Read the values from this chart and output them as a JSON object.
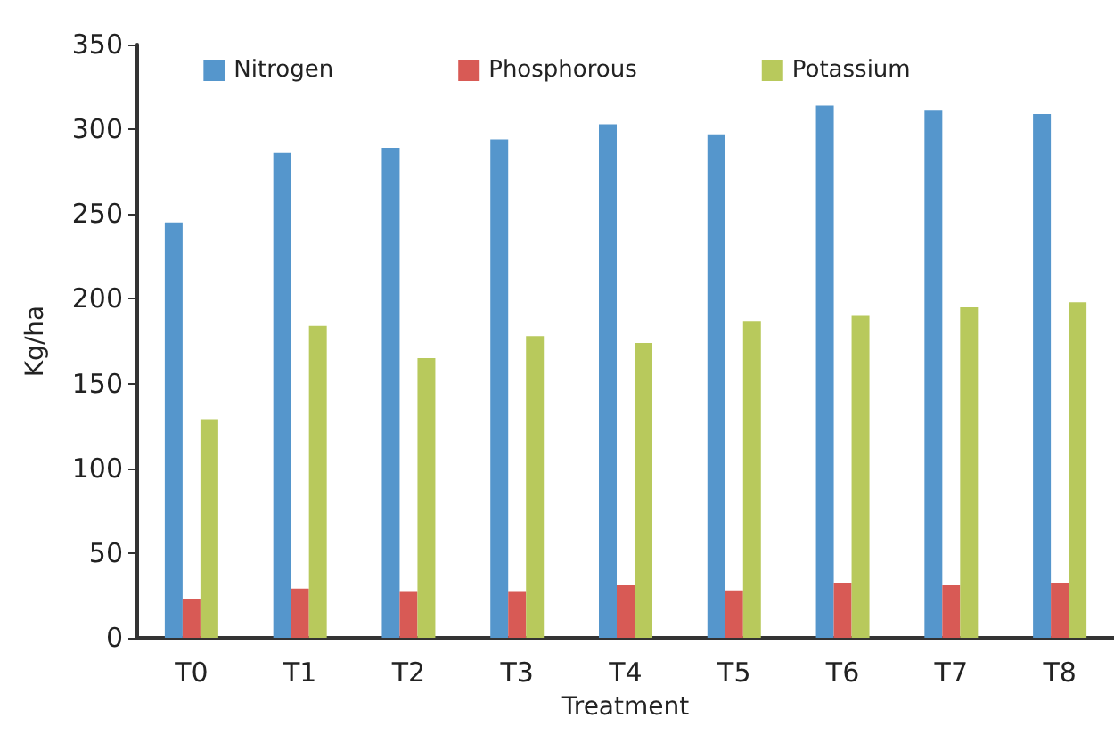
{
  "chart_data": {
    "type": "bar",
    "xlabel": "Treatment",
    "ylabel": "Kg/ha",
    "categories": [
      "T0",
      "T1",
      "T2",
      "T3",
      "T4",
      "T5",
      "T6",
      "T7",
      "T8"
    ],
    "series": [
      {
        "name": "Nitrogen",
        "color": "#5596cc",
        "values": [
          245,
          286,
          289,
          294,
          303,
          297,
          314,
          311,
          309
        ]
      },
      {
        "name": "Phosphorous",
        "color": "#d85a55",
        "values": [
          23,
          29,
          27,
          27,
          31,
          28,
          32,
          31,
          32
        ]
      },
      {
        "name": "Potassium",
        "color": "#b8c95c",
        "values": [
          129,
          184,
          165,
          178,
          174,
          187,
          190,
          195,
          198
        ]
      }
    ],
    "ylim": [
      0,
      350
    ],
    "yticks": [
      0,
      50,
      100,
      150,
      200,
      250,
      300,
      350
    ],
    "grid": false,
    "legend": "top"
  }
}
